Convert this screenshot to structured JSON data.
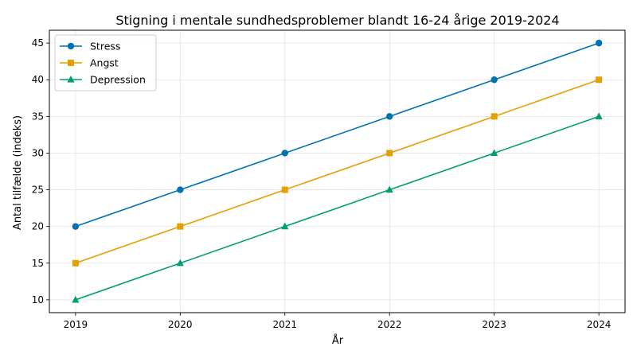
{
  "chart_data": {
    "type": "line",
    "title": "Stigning i mentale sundhedsproblemer blandt 16-24 årige 2019-2024",
    "xlabel": "År",
    "ylabel": "Antal tilfælde (indeks)",
    "x": [
      2019,
      2020,
      2021,
      2022,
      2023,
      2024
    ],
    "ylim": [
      8.25,
      46.75
    ],
    "yticks": [
      10,
      15,
      20,
      25,
      30,
      35,
      40,
      45
    ],
    "grid": true,
    "legend_position": "top-left",
    "series": [
      {
        "name": "Stress",
        "color": "#0072b2",
        "marker": "circle",
        "values": [
          20,
          25,
          30,
          35,
          40,
          45
        ]
      },
      {
        "name": "Angst",
        "color": "#e69f00",
        "marker": "square",
        "values": [
          15,
          20,
          25,
          30,
          35,
          40
        ]
      },
      {
        "name": "Depression",
        "color": "#009e73",
        "marker": "triangle",
        "values": [
          10,
          15,
          20,
          25,
          30,
          35
        ]
      }
    ]
  }
}
